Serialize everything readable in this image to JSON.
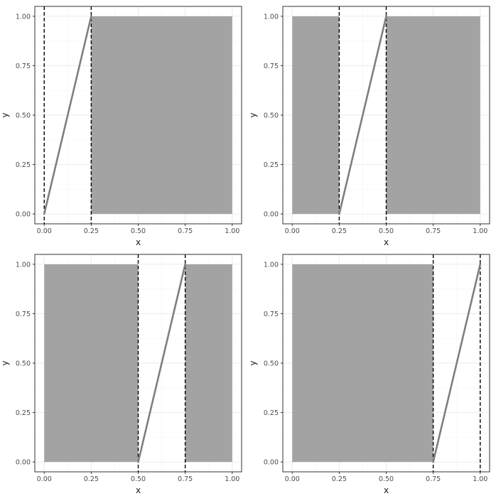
{
  "chart_data": [
    {
      "type": "area",
      "title": "",
      "xlabel": "x",
      "ylabel": "y",
      "xlim": [
        -0.05,
        1.05
      ],
      "ylim": [
        -0.05,
        1.05
      ],
      "x_ticks": [
        "0.00",
        "0.25",
        "0.50",
        "0.75",
        "1.00"
      ],
      "y_ticks": [
        "0.00",
        "0.25",
        "0.50",
        "0.75",
        "1.00"
      ],
      "grid": true,
      "shaded_regions": [
        {
          "x": [
            0.25,
            1.0
          ],
          "y": [
            0,
            1
          ]
        }
      ],
      "line": {
        "x": [
          0.0,
          0.25
        ],
        "y": [
          0,
          1
        ]
      },
      "vlines": [
        0.0,
        0.25
      ]
    },
    {
      "type": "area",
      "title": "",
      "xlabel": "x",
      "ylabel": "y",
      "xlim": [
        -0.05,
        1.05
      ],
      "ylim": [
        -0.05,
        1.05
      ],
      "x_ticks": [
        "0.00",
        "0.25",
        "0.50",
        "0.75",
        "1.00"
      ],
      "y_ticks": [
        "0.00",
        "0.25",
        "0.50",
        "0.75",
        "1.00"
      ],
      "grid": true,
      "shaded_regions": [
        {
          "x": [
            0.0,
            0.25
          ],
          "y": [
            0,
            1
          ]
        },
        {
          "x": [
            0.5,
            1.0
          ],
          "y": [
            0,
            1
          ]
        }
      ],
      "line": {
        "x": [
          0.25,
          0.5
        ],
        "y": [
          0,
          1
        ]
      },
      "vlines": [
        0.25,
        0.5
      ]
    },
    {
      "type": "area",
      "title": "",
      "xlabel": "x",
      "ylabel": "y",
      "xlim": [
        -0.05,
        1.05
      ],
      "ylim": [
        -0.05,
        1.05
      ],
      "x_ticks": [
        "0.00",
        "0.25",
        "0.50",
        "0.75",
        "1.00"
      ],
      "y_ticks": [
        "0.00",
        "0.25",
        "0.50",
        "0.75",
        "1.00"
      ],
      "grid": true,
      "shaded_regions": [
        {
          "x": [
            0.0,
            0.5
          ],
          "y": [
            0,
            1
          ]
        },
        {
          "x": [
            0.75,
            1.0
          ],
          "y": [
            0,
            1
          ]
        }
      ],
      "line": {
        "x": [
          0.5,
          0.75
        ],
        "y": [
          0,
          1
        ]
      },
      "vlines": [
        0.5,
        0.75
      ]
    },
    {
      "type": "area",
      "title": "",
      "xlabel": "x",
      "ylabel": "y",
      "xlim": [
        -0.05,
        1.05
      ],
      "ylim": [
        -0.05,
        1.05
      ],
      "x_ticks": [
        "0.00",
        "0.25",
        "0.50",
        "0.75",
        "1.00"
      ],
      "y_ticks": [
        "0.00",
        "0.25",
        "0.50",
        "0.75",
        "1.00"
      ],
      "grid": true,
      "shaded_regions": [
        {
          "x": [
            0.0,
            0.75
          ],
          "y": [
            0,
            1
          ]
        }
      ],
      "line": {
        "x": [
          0.75,
          1.0
        ],
        "y": [
          0,
          1
        ]
      },
      "vlines": [
        0.75,
        1.0
      ]
    }
  ],
  "colors": {
    "shade": "#a3a3a3",
    "line": "#7f7f7f",
    "vline": "#000000",
    "grid_major": "#ebebeb",
    "grid_minor": "#f5f5f5",
    "panel_border": "#333333",
    "tick_text": "#4d4d4d"
  }
}
